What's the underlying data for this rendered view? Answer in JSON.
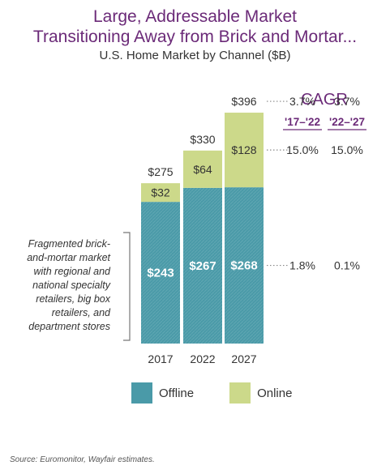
{
  "title_line1": "Large, Addressable Market",
  "title_line2": "Transitioning Away from Brick and Mortar...",
  "subtitle": "U.S. Home Market by Channel ($B)",
  "annotation": "Fragmented brick-and-mortar market with regional and national specialty retailers, big box retailers, and department stores",
  "source": "Source: Euromonitor, Wayfair estimates.",
  "legend": {
    "offline": "Offline",
    "online": "Online"
  },
  "colors": {
    "offline": "#4a9aa8",
    "online": "#ccd98a",
    "title": "#6b2a78"
  },
  "cagr": {
    "header": "CAGR",
    "periods": [
      "'17–'22",
      "'22–'27"
    ],
    "total": [
      "3.7%",
      "3.7%"
    ],
    "online": [
      "15.0%",
      "15.0%"
    ],
    "offline": [
      "1.8%",
      "0.1%"
    ]
  },
  "chart_data": {
    "type": "bar",
    "stacked": true,
    "categories": [
      "2017",
      "2022",
      "2027"
    ],
    "series": [
      {
        "name": "Offline",
        "values": [
          243,
          267,
          268
        ],
        "labels": [
          "$243",
          "$267",
          "$268"
        ]
      },
      {
        "name": "Online",
        "values": [
          32,
          64,
          128
        ],
        "labels": [
          "$32",
          "$64",
          "$128"
        ]
      }
    ],
    "totals": [
      275,
      330,
      396
    ],
    "total_labels": [
      "$275",
      "$330",
      "$396"
    ],
    "ylim": [
      0,
      396
    ]
  }
}
